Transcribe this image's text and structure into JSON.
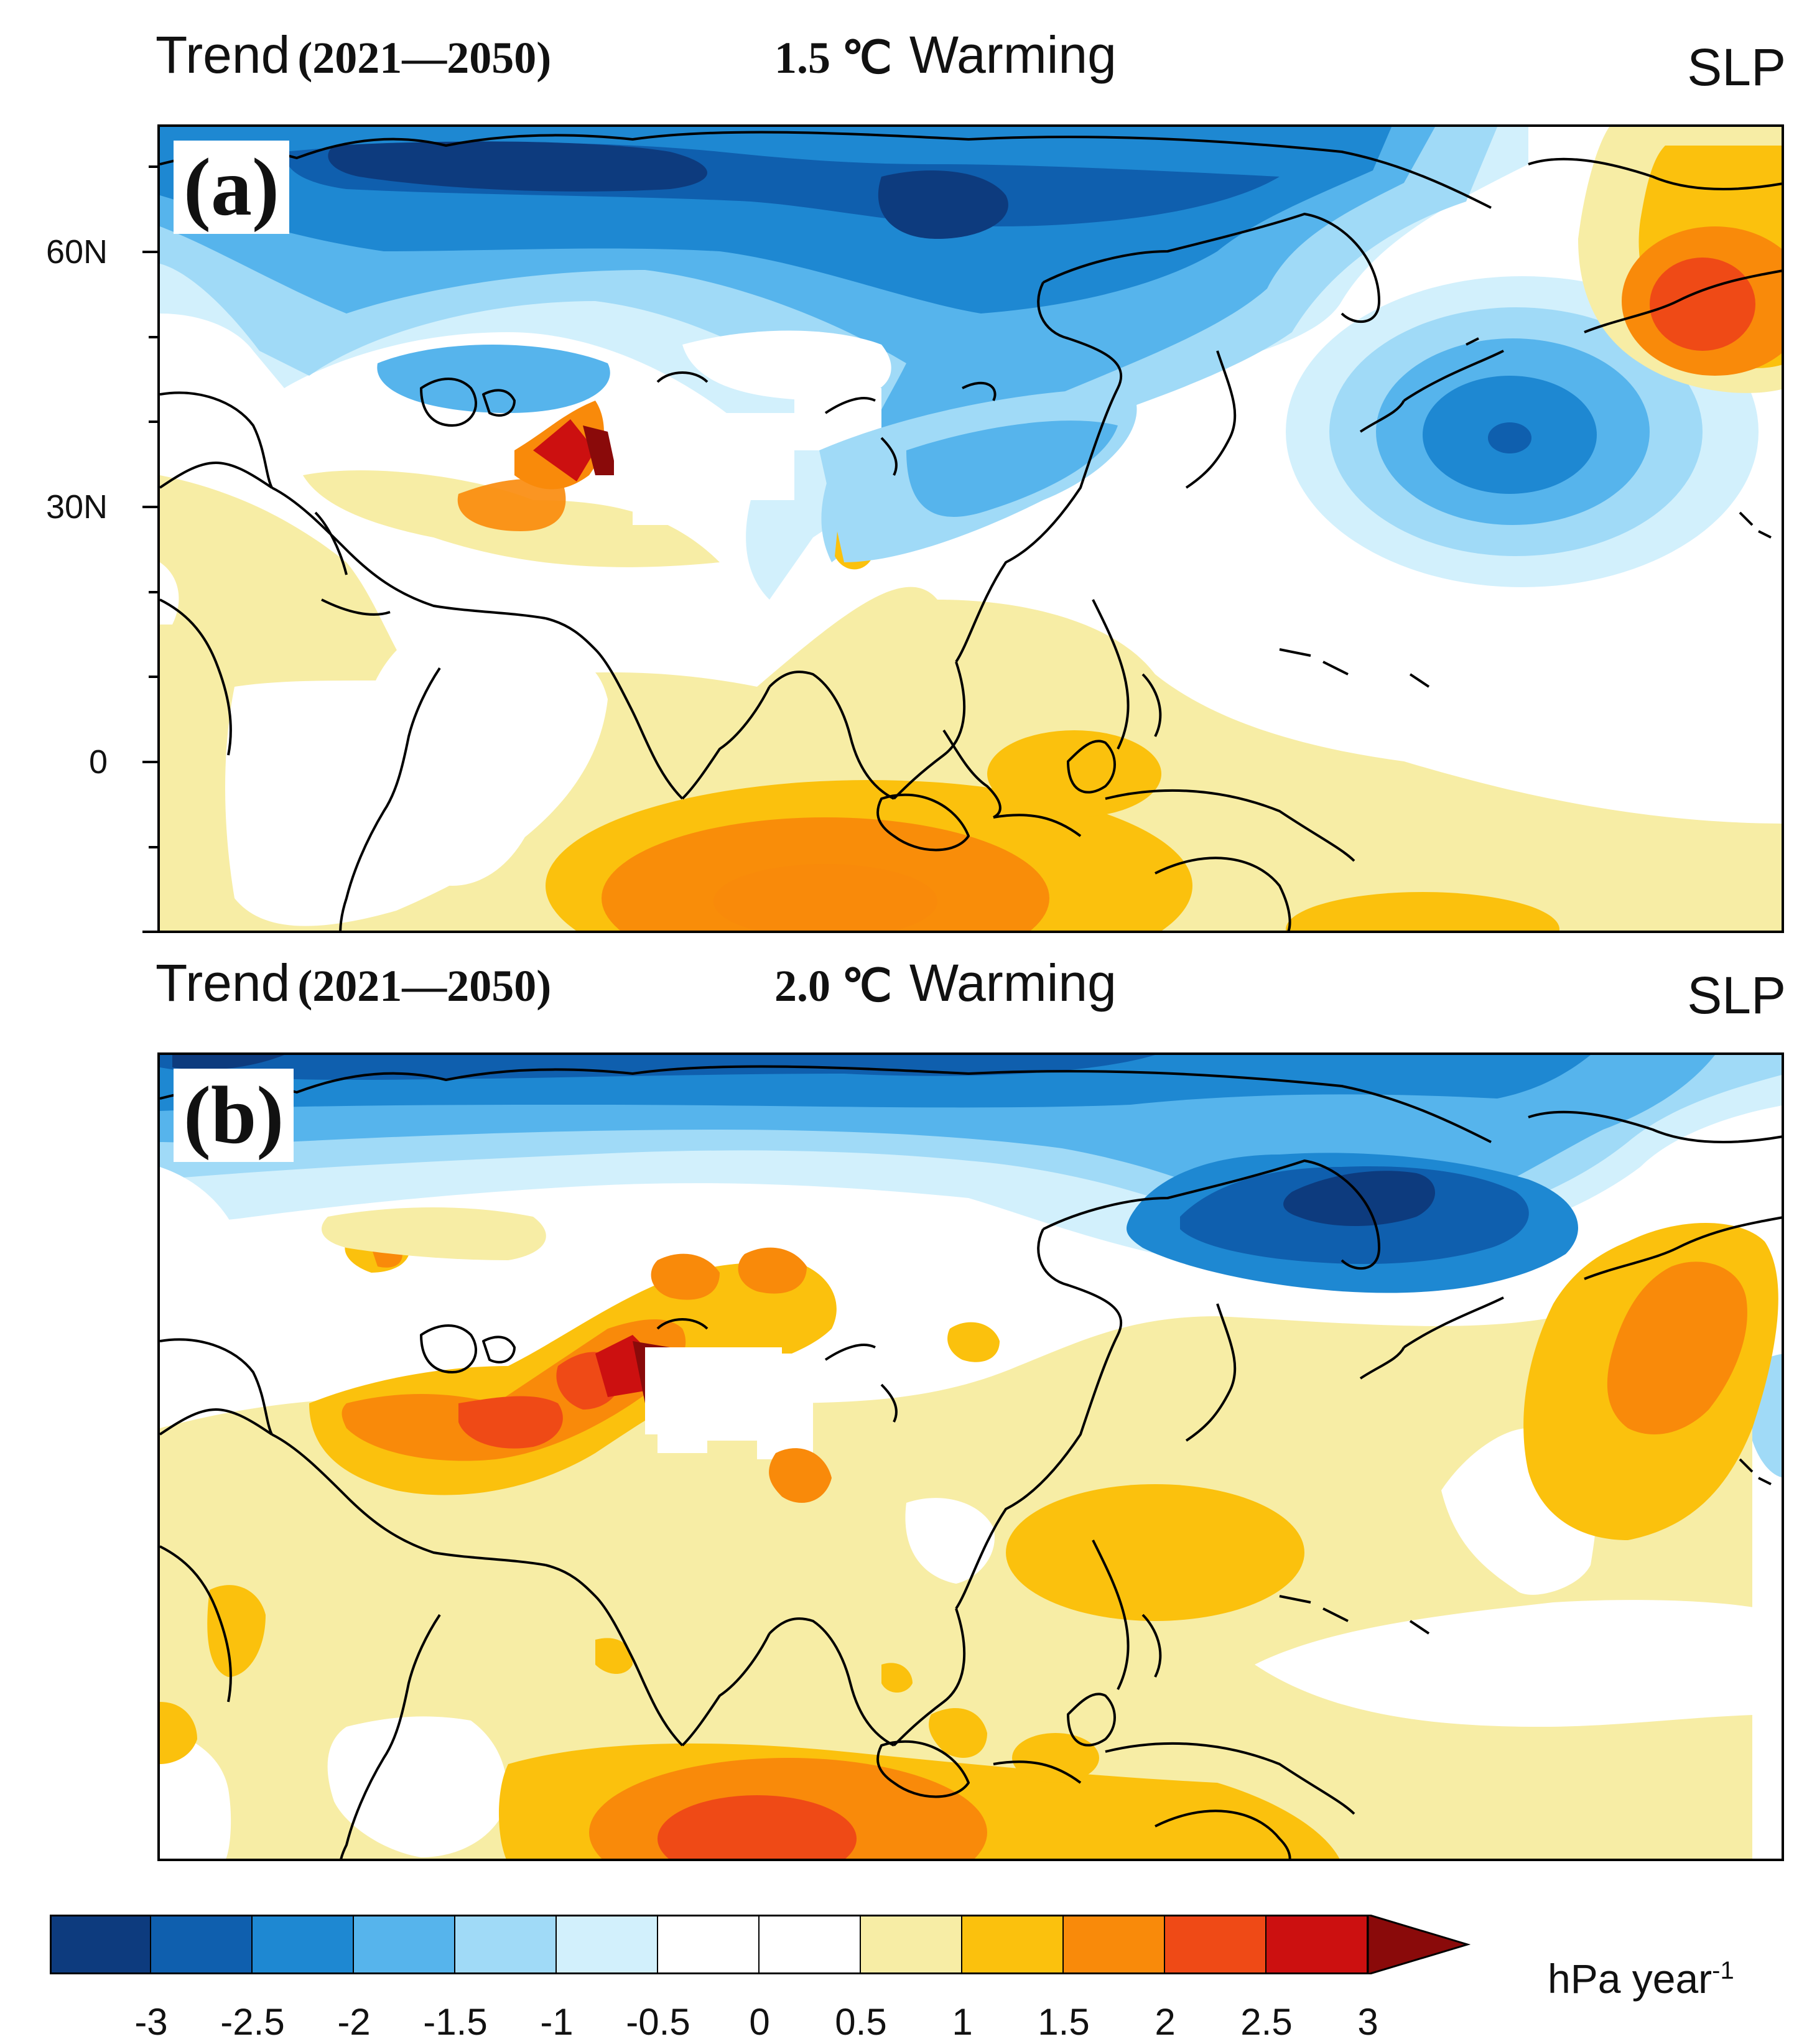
{
  "panels": [
    {
      "id": "a",
      "label": "(a)",
      "title_left_word": "Trend",
      "title_left_years": "(2021—2050)",
      "scenario_value": "1.5 ℃",
      "scenario_word": "Warming",
      "variable": "SLP",
      "lat_labels": [
        "60N",
        "30N",
        "0"
      ]
    },
    {
      "id": "b",
      "label": "(b)",
      "title_left_word": "Trend",
      "title_left_years": "(2021—2050)",
      "scenario_value": "2.0 ℃",
      "scenario_word": "Warming",
      "variable": "SLP",
      "lat_labels": []
    }
  ],
  "colorbar": {
    "labels": [
      "-3",
      "-2.5",
      "-2",
      "-1.5",
      "-1",
      "-0.5",
      "0",
      "0.5",
      "1",
      "1.5",
      "2",
      "2.5",
      "3"
    ],
    "colors": [
      "#0d3b7e",
      "#0f5fae",
      "#1e88d2",
      "#56b4ec",
      "#a0daf7",
      "#d2f0fc",
      "#ffffff",
      "#ffffff",
      "#f7eda5",
      "#fbc10d",
      "#f98a0a",
      "#ef4a16",
      "#cc1010",
      "#8a0a0a"
    ],
    "units_main": "hPa year",
    "units_exp": "-1"
  }
}
